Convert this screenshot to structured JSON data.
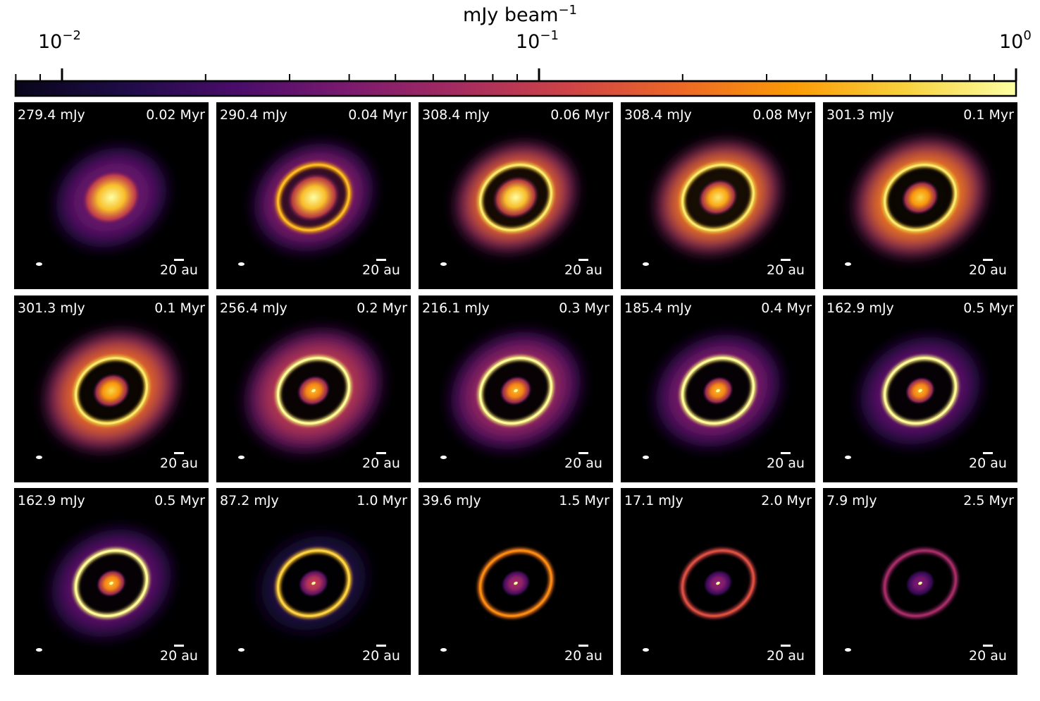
{
  "colorbar": {
    "label_base": "mJy beam",
    "label_exponent": "−1",
    "scale": "log",
    "range": [
      0.01,
      1
    ],
    "ticks": [
      {
        "base": "10",
        "exponent": "−2",
        "value": 0.01
      },
      {
        "base": "10",
        "exponent": "−1",
        "value": 0.1
      },
      {
        "base": "10",
        "exponent": "0",
        "value": 1
      }
    ],
    "colormap": "inferno",
    "stops": [
      "#08061a",
      "#1f0c48",
      "#4a0c6b",
      "#7b1a6e",
      "#a52c60",
      "#cf4446",
      "#ed6925",
      "#fb9b06",
      "#f7d13d",
      "#fcffa4"
    ]
  },
  "panels": [
    {
      "flux": "279.4 mJy",
      "age": "0.02 Myr",
      "scale_label": "20 au",
      "core": 1.0,
      "core_size": 1.0,
      "ring": 0,
      "gap": 0.25,
      "halo": 0.35,
      "halo_extent": 0.55
    },
    {
      "flux": "290.4 mJy",
      "age": "0.04 Myr",
      "scale_label": "20 au",
      "core": 1.0,
      "core_size": 0.85,
      "ring": 0.8,
      "gap": 0.6,
      "halo": 0.45,
      "halo_extent": 0.65
    },
    {
      "flux": "308.4 mJy",
      "age": "0.06 Myr",
      "scale_label": "20 au",
      "core": 1.0,
      "core_size": 0.7,
      "ring": 0.9,
      "gap": 0.9,
      "halo": 0.8,
      "halo_extent": 0.65
    },
    {
      "flux": "308.4 mJy",
      "age": "0.08 Myr",
      "scale_label": "20 au",
      "core": 0.95,
      "core_size": 0.55,
      "ring": 0.9,
      "gap": 0.9,
      "halo": 0.85,
      "halo_extent": 0.7
    },
    {
      "flux": "301.3 mJy",
      "age": "0.1 Myr",
      "scale_label": "20 au",
      "core": 0.9,
      "core_size": 0.5,
      "ring": 0.9,
      "gap": 0.95,
      "halo": 0.85,
      "halo_extent": 0.78
    },
    {
      "flux": "301.3 mJy",
      "age": "0.1 Myr",
      "scale_label": "20 au",
      "core": 0.9,
      "core_size": 0.5,
      "ring": 0.9,
      "gap": 0.95,
      "halo": 0.8,
      "halo_extent": 0.8
    },
    {
      "flux": "256.4 mJy",
      "age": "0.2 Myr",
      "scale_label": "20 au",
      "core": 0.85,
      "core_size": 0.4,
      "ring": 0.95,
      "gap": 0.95,
      "halo": 0.6,
      "halo_extent": 0.85
    },
    {
      "flux": "216.1 mJy",
      "age": "0.3 Myr",
      "scale_label": "20 au",
      "core": 0.85,
      "core_size": 0.38,
      "ring": 0.95,
      "gap": 0.95,
      "halo": 0.5,
      "halo_extent": 0.78
    },
    {
      "flux": "185.4 mJy",
      "age": "0.4 Myr",
      "scale_label": "20 au",
      "core": 0.85,
      "core_size": 0.35,
      "ring": 0.95,
      "gap": 0.95,
      "halo": 0.42,
      "halo_extent": 0.72
    },
    {
      "flux": "162.9 mJy",
      "age": "0.5 Myr",
      "scale_label": "20 au",
      "core": 0.85,
      "core_size": 0.33,
      "ring": 0.95,
      "gap": 0.95,
      "halo": 0.35,
      "halo_extent": 0.66
    },
    {
      "flux": "162.9 mJy",
      "age": "0.5 Myr",
      "scale_label": "20 au",
      "core": 0.85,
      "core_size": 0.33,
      "ring": 0.95,
      "gap": 0.95,
      "halo": 0.35,
      "halo_extent": 0.66
    },
    {
      "flux": "87.2 mJy",
      "age": "1.0 Myr",
      "scale_label": "20 au",
      "core": 0.55,
      "core_size": 0.33,
      "ring": 0.85,
      "gap": 0.95,
      "halo": 0.15,
      "halo_extent": 0.5
    },
    {
      "flux": "39.6 mJy",
      "age": "1.5 Myr",
      "scale_label": "20 au",
      "core": 0.45,
      "core_size": 0.3,
      "ring": 0.7,
      "gap": 0.95,
      "halo": 0.0,
      "halo_extent": 0.4
    },
    {
      "flux": "17.1 mJy",
      "age": "2.0 Myr",
      "scale_label": "20 au",
      "core": 0.4,
      "core_size": 0.3,
      "ring": 0.55,
      "gap": 0.95,
      "halo": 0.0,
      "halo_extent": 0.4
    },
    {
      "flux": "7.9 mJy",
      "age": "2.5 Myr",
      "scale_label": "20 au",
      "core": 0.35,
      "core_size": 0.3,
      "ring": 0.4,
      "gap": 0.95,
      "halo": 0.0,
      "halo_extent": 0.4
    }
  ]
}
